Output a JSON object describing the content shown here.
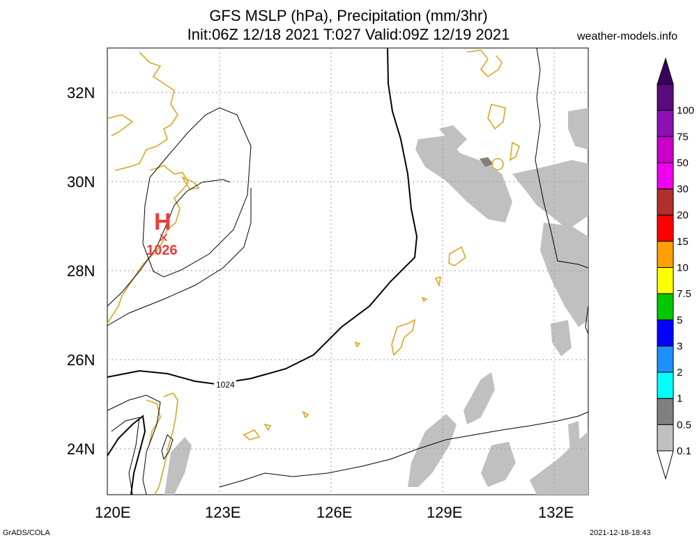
{
  "title_line1": "GFS MSLP (hPa), Precipitation (mm/3hr)",
  "title_line2": "Init:06Z 12/18 2021 T:027 Valid:09Z 12/19 2021",
  "site": "weather-models.info",
  "footer_left": "GrADS/COLA",
  "footer_right": "2021-12-18-18:43",
  "lon_ticks": [
    "120E",
    "123E",
    "126E",
    "129E",
    "132E"
  ],
  "lat_ticks": [
    "32N",
    "30N",
    "28N",
    "26N",
    "24N"
  ],
  "high_center": {
    "symbol": "H",
    "value": "1026"
  },
  "isobar_label": "1024",
  "colorbar": {
    "labels": [
      "100",
      "75",
      "50",
      "30",
      "20",
      "15",
      "10",
      "7.5",
      "5",
      "3",
      "2",
      "1",
      "0.5",
      "0.1"
    ],
    "colors": [
      "#5a0a7a",
      "#8c10b4",
      "#c800c8",
      "#f000f0",
      "#b0302a",
      "#ff0000",
      "#ffa000",
      "#ffff00",
      "#00c800",
      "#0000ff",
      "#1e90ff",
      "#00ffff",
      "#808080",
      "#c0c0c0"
    ]
  },
  "colors": {
    "coast": "#daa520",
    "precip": "#c0c0c0",
    "precip_dark": "#808080",
    "high": "#ee3b3b"
  }
}
